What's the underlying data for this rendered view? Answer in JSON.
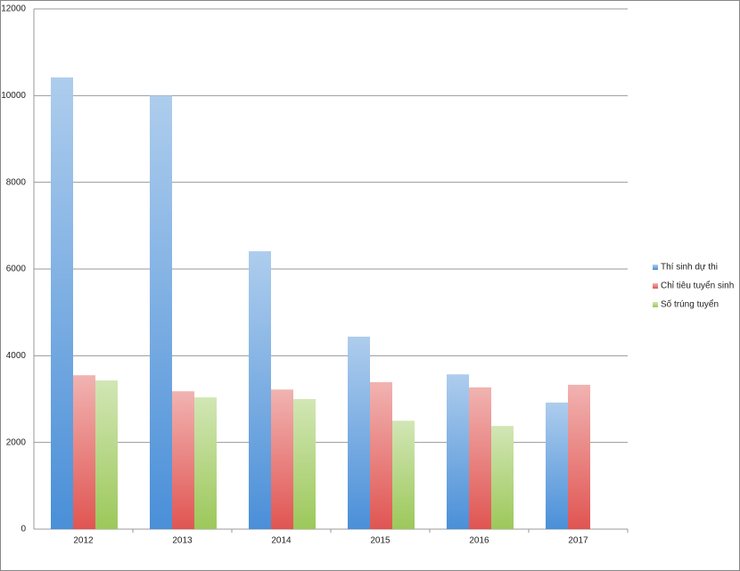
{
  "chart_data": {
    "type": "bar",
    "categories": [
      "2012",
      "2013",
      "2014",
      "2015",
      "2016",
      "2017"
    ],
    "series": [
      {
        "name": "Thí sinh dự thi",
        "color": "#4a8fd8",
        "values": [
          10420,
          10000,
          6410,
          4440,
          3570,
          2920
        ]
      },
      {
        "name": "Chỉ tiêu tuyển sinh",
        "color": "#e05552",
        "values": [
          3550,
          3180,
          3220,
          3390,
          3270,
          3330
        ]
      },
      {
        "name": "Số trúng tuyển",
        "color": "#9cc85a",
        "values": [
          3430,
          3040,
          3000,
          2500,
          2380,
          null
        ]
      }
    ],
    "ylim": [
      0,
      12000
    ],
    "yticks": [
      0,
      2000,
      4000,
      6000,
      8000,
      10000,
      12000
    ],
    "grid": true,
    "legend": "right"
  }
}
